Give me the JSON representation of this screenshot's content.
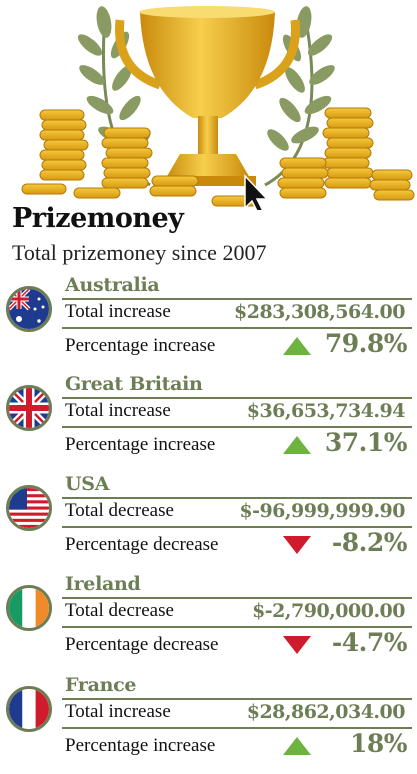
{
  "header": {
    "title": "Prizemoney",
    "subtitle": "Total prizemoney since 2007"
  },
  "colors": {
    "accent": "#6d7e56",
    "up": "#6cb33f",
    "down": "#cf1b2b",
    "gold": "#e8b21f"
  },
  "hero": {
    "icons": [
      "trophy-icon",
      "laurel-wreath-icon",
      "coin-stack-icon",
      "mouse-cursor-icon"
    ]
  },
  "countries": [
    {
      "name": "Australia",
      "flag": "flag-australia-icon",
      "total_label": "Total increase",
      "total_value": "$283,308,564.00",
      "pct_label": "Percentage increase",
      "pct_value": "79.8%",
      "direction": "up"
    },
    {
      "name": "Great Britain",
      "flag": "flag-great-britain-icon",
      "total_label": "Total increase",
      "total_value": "$36,653,734.94",
      "pct_label": "Percentage increase",
      "pct_value": "37.1%",
      "direction": "up"
    },
    {
      "name": "USA",
      "flag": "flag-usa-icon",
      "total_label": "Total decrease",
      "total_value": "$-96,999,999.90",
      "pct_label": "Percentage decrease",
      "pct_value": "-8.2%",
      "direction": "down"
    },
    {
      "name": "Ireland",
      "flag": "flag-ireland-icon",
      "total_label": "Total decrease",
      "total_value": "$-2,790,000.00",
      "pct_label": "Percentage decrease",
      "pct_value": "-4.7%",
      "direction": "down"
    },
    {
      "name": "France",
      "flag": "flag-france-icon",
      "total_label": "Total increase",
      "total_value": "$28,862,034.00",
      "pct_label": "Percentage increase",
      "pct_value": "18%",
      "direction": "up"
    }
  ]
}
